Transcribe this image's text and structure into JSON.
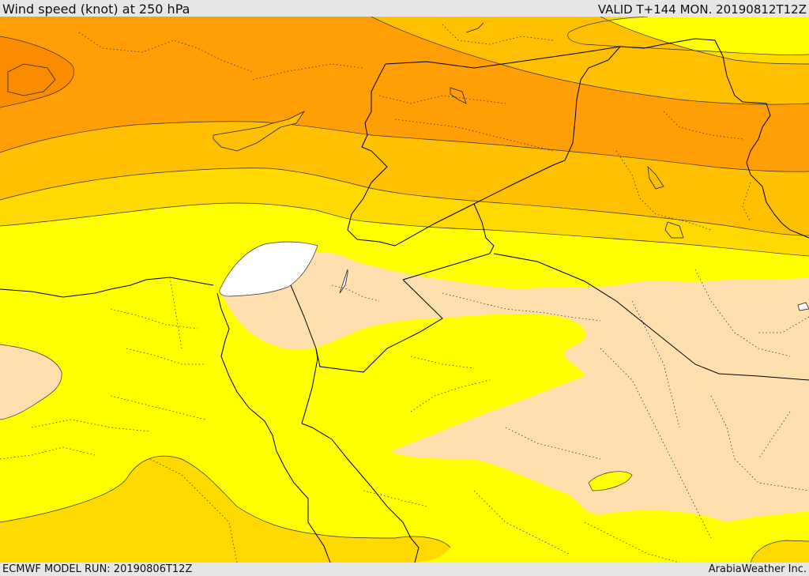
{
  "header": {
    "title": "Wind speed (knot) at 250 hPa",
    "valid": "VALID T+144 MON. 20190812T12Z"
  },
  "footer": {
    "model_run": "ECMWF MODEL RUN: 20190806T12Z",
    "credit": "ArabiaWeather Inc."
  },
  "map": {
    "region": "Eastern Mediterranean / Levant / Egypt / Arabia",
    "shading_colors": {
      "very_strong": "#fb8c00",
      "strong": "#ff9e05",
      "moderately_strong": "#ffc001",
      "moderate": "#ffd900",
      "light": "#ffff00",
      "weak": "#ffdfad",
      "very_weak": "#ffffff"
    },
    "border_color": "#000000"
  }
}
